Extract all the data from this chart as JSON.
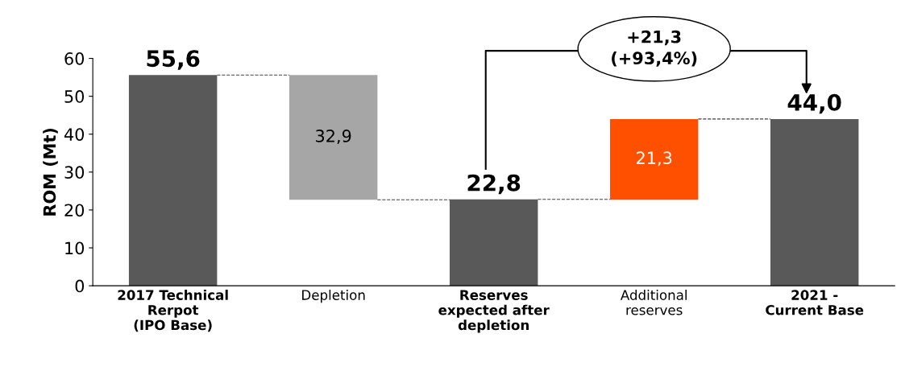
{
  "chart_data": {
    "type": "bar",
    "ylabel": "ROM (Mt)",
    "categories": [
      "2017 Technical\nRerpot\n(IPO Base)",
      "Depletion",
      "Reserves\nexpected after\ndepletion",
      "Additional\nreserves",
      "2021 -\nCurrent Base"
    ],
    "values": [
      55.6,
      32.9,
      22.8,
      21.3,
      44.0
    ],
    "base": [
      0,
      22.7,
      0,
      22.7,
      0
    ],
    "colors": [
      "#595959",
      "#a6a6a6",
      "#595959",
      "#ff5000",
      "#595959"
    ],
    "value_labels": [
      "55,6",
      "32,9",
      "22,8",
      "21,3",
      "44,0"
    ],
    "ylim": [
      0,
      60
    ],
    "yticks": [
      0,
      10,
      20,
      30,
      40,
      50,
      60
    ],
    "grid": false,
    "annotations": [
      "+21,3\n(+93,4%)"
    ]
  }
}
